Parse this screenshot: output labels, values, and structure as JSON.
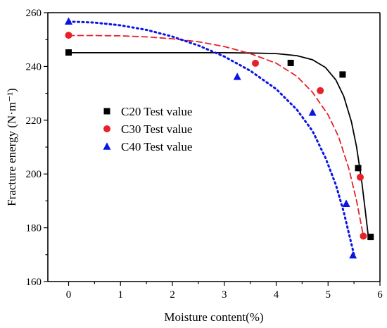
{
  "chart_data": {
    "type": "scatter",
    "title": "",
    "xlabel": "Moisture content(%)",
    "ylabel": "Fracture energy (N·m⁻¹)",
    "xlim": [
      -0.4,
      6.0
    ],
    "ylim": [
      160,
      260
    ],
    "xticks": [
      0,
      1,
      2,
      3,
      4,
      5,
      6
    ],
    "yticks": [
      160,
      180,
      200,
      220,
      240,
      260
    ],
    "grid": false,
    "legend_position": "center-left",
    "series": [
      {
        "name": "C20 Test value",
        "marker": "square",
        "color": "#000000",
        "fit_style": "solid",
        "points": [
          [
            0,
            245.2
          ],
          [
            4.28,
            241.3
          ],
          [
            5.28,
            237.0
          ],
          [
            5.58,
            202.2
          ],
          [
            5.82,
            176.6
          ]
        ],
        "fit": [
          [
            0,
            245.1
          ],
          [
            1,
            245.1
          ],
          [
            2,
            245.1
          ],
          [
            3,
            245.1
          ],
          [
            3.5,
            245.0
          ],
          [
            4.0,
            244.8
          ],
          [
            4.4,
            244.0
          ],
          [
            4.7,
            242.5
          ],
          [
            4.95,
            239.6
          ],
          [
            5.15,
            235.0
          ],
          [
            5.3,
            229.0
          ],
          [
            5.45,
            219.5
          ],
          [
            5.55,
            210.0
          ],
          [
            5.65,
            197.0
          ],
          [
            5.72,
            186.0
          ],
          [
            5.78,
            176.0
          ]
        ]
      },
      {
        "name": "C30 Test value",
        "marker": "circle",
        "color": "#e8202a",
        "fit_style": "dashed",
        "points": [
          [
            0,
            251.6
          ],
          [
            3.6,
            241.2
          ],
          [
            4.85,
            231.0
          ],
          [
            5.62,
            198.8
          ],
          [
            5.68,
            176.9
          ]
        ],
        "fit": [
          [
            0,
            251.5
          ],
          [
            0.5,
            251.5
          ],
          [
            1.0,
            251.4
          ],
          [
            1.5,
            251.0
          ],
          [
            2.0,
            250.3
          ],
          [
            2.5,
            249.2
          ],
          [
            3.0,
            247.4
          ],
          [
            3.5,
            244.8
          ],
          [
            4.0,
            241.2
          ],
          [
            4.4,
            236.3
          ],
          [
            4.7,
            230.4
          ],
          [
            5.0,
            222.0
          ],
          [
            5.2,
            214.0
          ],
          [
            5.4,
            202.0
          ],
          [
            5.55,
            190.0
          ],
          [
            5.68,
            177.0
          ]
        ]
      },
      {
        "name": "C40 Test value",
        "marker": "triangle",
        "color": "#0a14e6",
        "fit_style": "dotted",
        "points": [
          [
            0,
            256.8
          ],
          [
            3.25,
            236.2
          ],
          [
            4.7,
            222.9
          ],
          [
            5.35,
            189.0
          ],
          [
            5.48,
            169.8
          ]
        ],
        "fit": [
          [
            0,
            256.7
          ],
          [
            0.5,
            256.3
          ],
          [
            1.0,
            255.3
          ],
          [
            1.5,
            253.6
          ],
          [
            2.0,
            251.1
          ],
          [
            2.5,
            247.8
          ],
          [
            3.0,
            243.7
          ],
          [
            3.5,
            238.4
          ],
          [
            4.0,
            231.6
          ],
          [
            4.4,
            223.9
          ],
          [
            4.7,
            216.0
          ],
          [
            4.95,
            206.0
          ],
          [
            5.15,
            196.0
          ],
          [
            5.3,
            186.0
          ],
          [
            5.45,
            174.0
          ],
          [
            5.5,
            170.0
          ]
        ]
      }
    ]
  }
}
